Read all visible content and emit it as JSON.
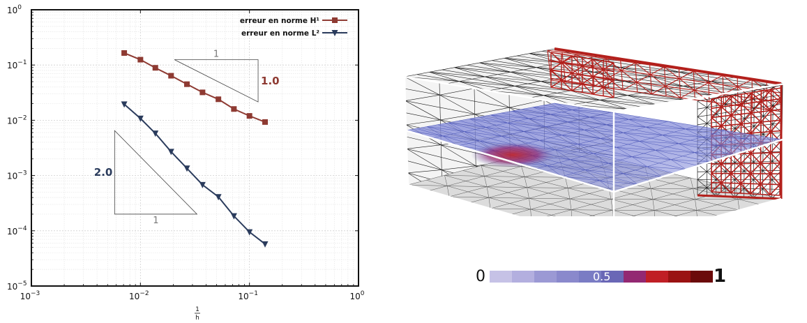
{
  "chart_data": [
    {
      "type": "line",
      "xscale": "log",
      "yscale": "log",
      "xlim": [
        0.001,
        1
      ],
      "ylim": [
        1e-05,
        1
      ],
      "xlabel_num": "1",
      "xlabel_den": "h",
      "xticks": [
        {
          "base": "10",
          "exp": "−3"
        },
        {
          "base": "10",
          "exp": "−2"
        },
        {
          "base": "10",
          "exp": "−1"
        },
        {
          "base": "10",
          "exp": "0"
        }
      ],
      "yticks": [
        {
          "base": "10",
          "exp": "−5"
        },
        {
          "base": "10",
          "exp": "−4"
        },
        {
          "base": "10",
          "exp": "−3"
        },
        {
          "base": "10",
          "exp": "−2"
        },
        {
          "base": "10",
          "exp": "−1"
        },
        {
          "base": "10",
          "exp": "0"
        }
      ],
      "grid": true,
      "legend_position": "top-right",
      "series": [
        {
          "name": "erreur en norme H¹",
          "color": "#8e3a32",
          "marker": "square",
          "x": [
            0.0071,
            0.01,
            0.0137,
            0.0191,
            0.0267,
            0.0371,
            0.0519,
            0.072,
            0.1,
            0.139
          ],
          "y": [
            0.165,
            0.125,
            0.089,
            0.064,
            0.045,
            0.032,
            0.024,
            0.016,
            0.012,
            0.0093
          ]
        },
        {
          "name": "erreur en norme L²",
          "color": "#2a3b5c",
          "marker": "triangle-down",
          "x": [
            0.0071,
            0.01,
            0.0137,
            0.0191,
            0.0267,
            0.0371,
            0.0519,
            0.072,
            0.1,
            0.139
          ],
          "y": [
            0.0195,
            0.0108,
            0.0058,
            0.0027,
            0.00135,
            0.00068,
            0.00041,
            0.000185,
            9.5e-05,
            5.75e-05
          ]
        }
      ],
      "slope_triangles": [
        {
          "slope_label": "1.0",
          "run_label": "1",
          "color": "#8e3a32",
          "x": [
            0.0205,
            0.12
          ],
          "y": [
            0.125,
            0.0215
          ],
          "orientation": "upper"
        },
        {
          "slope_label": "2.0",
          "run_label": "1",
          "color": "#2a3b5c",
          "x": [
            0.0058,
            0.033
          ],
          "y": [
            0.0065,
            0.0002
          ],
          "orientation": "lower"
        }
      ]
    }
  ],
  "colorbar": {
    "min_label": "0",
    "mid_label": "0.5",
    "max_label": "1",
    "colors": [
      "#c6c2e6",
      "#b3afdf",
      "#9b99d4",
      "#8a89cc",
      "#7a7cc4",
      "#6a67b6",
      "#932872",
      "#c01f25",
      "#9a1212",
      "#6b0a0a"
    ]
  },
  "mesh_colors": {
    "black_mesh": "#1a1a1a",
    "red_mesh": "#b3201c",
    "plane_fill": "#6a72d0",
    "grey_fill": "#d9d9d9"
  }
}
